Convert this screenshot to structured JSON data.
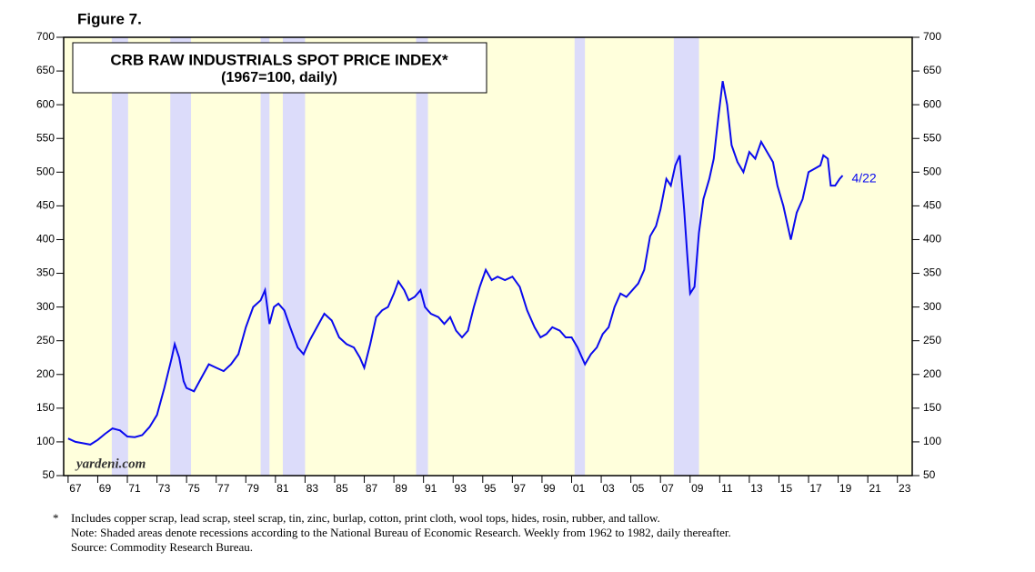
{
  "chart_data": {
    "type": "line",
    "figure_label": "Figure 7.",
    "title": "CRB RAW INDUSTRIALS SPOT PRICE INDEX*",
    "subtitle": "(1967=100, daily)",
    "watermark": "yardeni.com",
    "end_label": "4/22",
    "xlim": [
      1966.7,
      2024
    ],
    "ylim": [
      50,
      700
    ],
    "yticks": [
      50,
      100,
      150,
      200,
      250,
      300,
      350,
      400,
      450,
      500,
      550,
      600,
      650,
      700
    ],
    "xticks": [
      {
        "value": 1967,
        "label": "67"
      },
      {
        "value": 1969,
        "label": "69"
      },
      {
        "value": 1971,
        "label": "71"
      },
      {
        "value": 1973,
        "label": "73"
      },
      {
        "value": 1975,
        "label": "75"
      },
      {
        "value": 1977,
        "label": "77"
      },
      {
        "value": 1979,
        "label": "79"
      },
      {
        "value": 1981,
        "label": "81"
      },
      {
        "value": 1983,
        "label": "83"
      },
      {
        "value": 1985,
        "label": "85"
      },
      {
        "value": 1987,
        "label": "87"
      },
      {
        "value": 1989,
        "label": "89"
      },
      {
        "value": 1991,
        "label": "91"
      },
      {
        "value": 1993,
        "label": "93"
      },
      {
        "value": 1995,
        "label": "95"
      },
      {
        "value": 1997,
        "label": "97"
      },
      {
        "value": 1999,
        "label": "99"
      },
      {
        "value": 2001,
        "label": "01"
      },
      {
        "value": 2003,
        "label": "03"
      },
      {
        "value": 2005,
        "label": "05"
      },
      {
        "value": 2007,
        "label": "07"
      },
      {
        "value": 2009,
        "label": "09"
      },
      {
        "value": 2011,
        "label": "11"
      },
      {
        "value": 2013,
        "label": "13"
      },
      {
        "value": 2015,
        "label": "15"
      },
      {
        "value": 2017,
        "label": "17"
      },
      {
        "value": 2019,
        "label": "19"
      },
      {
        "value": 2021,
        "label": "21"
      },
      {
        "value": 2023,
        "label": "23"
      }
    ],
    "recessions": [
      [
        1969.95,
        1971.05
      ],
      [
        1973.9,
        1975.3
      ],
      [
        1980.0,
        1980.6
      ],
      [
        1981.5,
        1983.0
      ],
      [
        1990.5,
        1991.3
      ],
      [
        2001.2,
        2001.9
      ],
      [
        2007.9,
        2009.6
      ]
    ],
    "recession_color": "#dcdcfa",
    "background_color": "#ffffdc",
    "x": [
      1967.0,
      1967.5,
      1968,
      1968.5,
      1969,
      1969.5,
      1970,
      1970.5,
      1971,
      1971.5,
      1972,
      1972.5,
      1973,
      1973.5,
      1974,
      1974.2,
      1974.5,
      1974.8,
      1975,
      1975.5,
      1976,
      1976.5,
      1977,
      1977.5,
      1978,
      1978.5,
      1979,
      1979.5,
      1980,
      1980.3,
      1980.6,
      1980.9,
      1981.2,
      1981.6,
      1982,
      1982.5,
      1982.9,
      1983.3,
      1983.8,
      1984.3,
      1984.8,
      1985.3,
      1985.8,
      1986.3,
      1986.7,
      1987.0,
      1987.4,
      1987.8,
      1988.2,
      1988.6,
      1989.0,
      1989.3,
      1989.7,
      1990.0,
      1990.4,
      1990.8,
      1991.1,
      1991.5,
      1992,
      1992.4,
      1992.8,
      1993.2,
      1993.6,
      1994.0,
      1994.4,
      1994.8,
      1995.2,
      1995.6,
      1996,
      1996.5,
      1997,
      1997.5,
      1998,
      1998.5,
      1998.9,
      1999.3,
      1999.7,
      2000.2,
      2000.6,
      2001.0,
      2001.4,
      2001.9,
      2002.3,
      2002.7,
      2003.1,
      2003.5,
      2003.9,
      2004.3,
      2004.7,
      2005.1,
      2005.5,
      2005.9,
      2006.3,
      2006.7,
      2007.0,
      2007.4,
      2007.7,
      2008.0,
      2008.3,
      2008.6,
      2008.8,
      2009.0,
      2009.3,
      2009.6,
      2009.9,
      2010.3,
      2010.6,
      2010.9,
      2011.2,
      2011.5,
      2011.8,
      2012.2,
      2012.6,
      2013,
      2013.4,
      2013.8,
      2014.2,
      2014.6,
      2014.9,
      2015.3,
      2015.8,
      2016.2,
      2016.6,
      2017.0,
      2017.4,
      2017.8,
      2018.0,
      2018.3,
      2018.5,
      2018.8,
      2019.1,
      2019.3
    ],
    "series": [
      {
        "color": "#0a0aee",
        "values": [
          105,
          100,
          98,
          96,
          103,
          112,
          120,
          117,
          108,
          107,
          110,
          122,
          140,
          180,
          225,
          245,
          225,
          190,
          180,
          175,
          195,
          215,
          210,
          205,
          215,
          230,
          270,
          300,
          310,
          325,
          275,
          300,
          305,
          295,
          270,
          240,
          230,
          250,
          270,
          290,
          280,
          255,
          245,
          240,
          225,
          210,
          245,
          285,
          295,
          300,
          320,
          338,
          325,
          310,
          315,
          325,
          300,
          290,
          285,
          275,
          285,
          265,
          255,
          265,
          300,
          330,
          355,
          340,
          345,
          340,
          345,
          330,
          295,
          270,
          255,
          260,
          270,
          265,
          255,
          255,
          240,
          215,
          230,
          240,
          260,
          270,
          300,
          320,
          315,
          325,
          335,
          355,
          405,
          420,
          445,
          490,
          480,
          510,
          525,
          445,
          380,
          320,
          330,
          410,
          460,
          490,
          520,
          580,
          635,
          600,
          540,
          515,
          500,
          530,
          520,
          545,
          530,
          515,
          480,
          450,
          400,
          440,
          460,
          500,
          505,
          510,
          525,
          520,
          480,
          480,
          490,
          495
        ]
      }
    ],
    "footnote_marker": "*",
    "notes": [
      "Includes copper scrap, lead scrap, steel scrap, tin, zinc, burlap, cotton, print cloth, wool tops, hides, rosin, rubber, and tallow.",
      "Note: Shaded areas denote recessions according to the National Bureau of Economic Research. Weekly from 1962 to 1982, daily thereafter.",
      "Source: Commodity Research Bureau."
    ]
  }
}
